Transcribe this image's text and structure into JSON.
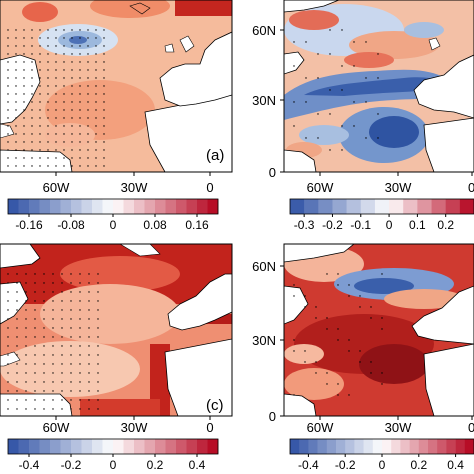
{
  "panels": [
    {
      "id": "a",
      "label": "(a)",
      "lon_ticks": [
        "60W",
        "30W",
        "0"
      ],
      "lat_ticks": [],
      "colorbar": {
        "ticks": [
          "-0.16",
          "-0.08",
          "0",
          "0.08",
          "0.16"
        ],
        "range": [
          -0.2,
          0.2
        ],
        "bins": 20
      }
    },
    {
      "id": "b",
      "label": "",
      "lon_ticks": [
        "60W",
        "30W",
        "0"
      ],
      "lat_ticks": [
        "60N",
        "30N",
        "0"
      ],
      "colorbar": {
        "ticks": [
          "-0.3",
          "-0.2",
          "-0.1",
          "0",
          "0.1",
          "0.2"
        ],
        "range": [
          -0.35,
          0.3
        ],
        "bins": 13
      }
    },
    {
      "id": "c",
      "label": "(c)",
      "lon_ticks": [
        "60W",
        "30W",
        "0"
      ],
      "lat_ticks": [],
      "colorbar": {
        "ticks": [
          "-0.4",
          "-0.2",
          "0",
          "0.2",
          "0.4"
        ],
        "range": [
          -0.5,
          0.5
        ],
        "bins": 20
      }
    },
    {
      "id": "d",
      "label": "",
      "lon_ticks": [
        "60W",
        "30W",
        "0"
      ],
      "lat_ticks": [
        "60N",
        "30N",
        "0"
      ],
      "colorbar": {
        "ticks": [
          "-0.4",
          "-0.2",
          "0",
          "0.2",
          "0.4"
        ],
        "range": [
          -0.5,
          0.5
        ],
        "bins": 20
      }
    }
  ],
  "palette": {
    "negative": "#2c4fa3",
    "neutral": "#ffffff",
    "positive": "#b3001b",
    "land": "#ffffff",
    "coast": "#000000"
  }
}
